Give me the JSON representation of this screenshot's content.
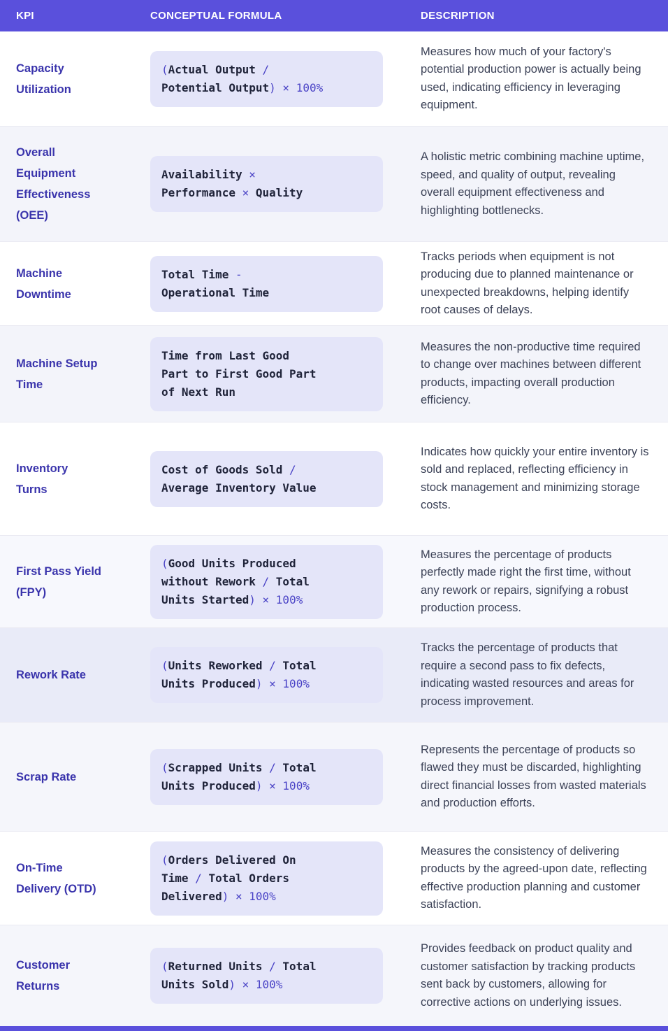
{
  "header": {
    "kpi": "KPI",
    "formula": "CONCEPTUAL FORMULA",
    "description": "DESCRIPTION"
  },
  "colors": {
    "header_bg": "#5A50DC",
    "kpi_text": "#3A34AC",
    "formula_box_bg": "#E4E5F9",
    "formula_text": "#20243A",
    "formula_operator": "#4A43C6",
    "description_text": "#3C4257",
    "divider": "#EAEAF2",
    "footer_bg": "#5A50DC",
    "row_tint": "#F3F4FA",
    "row_highlight": "#E9EBF8"
  },
  "rows": [
    {
      "kpi": "Capacity\nUtilization",
      "formula": "(Actual Output /\nPotential Output) × 100%",
      "description": "Measures how much of your factory's potential production power is actually being used, indicating efficiency in leveraging equipment.",
      "bg": "#FFFFFF"
    },
    {
      "kpi": "Overall\nEquipment\nEffectiveness\n(OEE)",
      "formula": "Availability ×\nPerformance × Quality",
      "description": "A holistic metric combining machine uptime, speed, and quality of output, revealing overall equipment effectiveness and highlighting bottlenecks.",
      "bg": "#F3F4FA"
    },
    {
      "kpi": "Machine\nDowntime",
      "formula": "Total Time -\nOperational Time",
      "description": "Tracks periods when equipment is not producing due to planned maintenance or unexpected breakdowns, helping identify root causes of delays.",
      "bg": "#FFFFFF"
    },
    {
      "kpi": "Machine Setup\nTime",
      "formula": "Time from Last Good\nPart to First Good Part\nof Next Run",
      "description": "Measures the non-productive time required to change over machines between different products, impacting overall production efficiency.",
      "bg": "#F3F4FA"
    },
    {
      "kpi": "Inventory\nTurns",
      "formula": "Cost of Goods Sold /\nAverage Inventory Value",
      "description": "Indicates how quickly your entire inventory is sold and replaced, reflecting efficiency in stock management and minimizing storage costs.",
      "bg": "#FFFFFF"
    },
    {
      "kpi": "First Pass Yield\n(FPY)",
      "formula": "(Good Units Produced\nwithout Rework / Total\nUnits Started) × 100%",
      "description": "Measures the percentage of products perfectly made right the first time, without any rework or repairs, signifying a robust production process.",
      "bg": "#F7F8FD"
    },
    {
      "kpi": "Rework Rate",
      "formula": "(Units Reworked / Total\nUnits Produced) × 100%",
      "description": "Tracks the percentage of products that require a second pass to fix defects, indicating wasted resources and areas for process improvement.",
      "bg": "#E9EBF8"
    },
    {
      "kpi": "Scrap Rate",
      "formula": "(Scrapped Units / Total\nUnits Produced) × 100%",
      "description": "Represents the percentage of products so flawed they must be discarded, highlighting direct financial losses from wasted materials and production efforts.",
      "bg": "#F5F6FB"
    },
    {
      "kpi": "On-Time\nDelivery (OTD)",
      "formula": "(Orders Delivered On\nTime / Total Orders\nDelivered) × 100%",
      "description": "Measures the consistency of delivering products by the agreed-upon date, reflecting effective production planning and customer satisfaction.",
      "bg": "#FFFFFF"
    },
    {
      "kpi": "Customer\nReturns",
      "formula": "(Returned Units / Total\nUnits Sold) × 100%",
      "description": "Provides feedback on product quality and customer satisfaction by tracking products sent back by customers, allowing for corrective actions on underlying issues.",
      "bg": "#F5F6FB"
    }
  ]
}
